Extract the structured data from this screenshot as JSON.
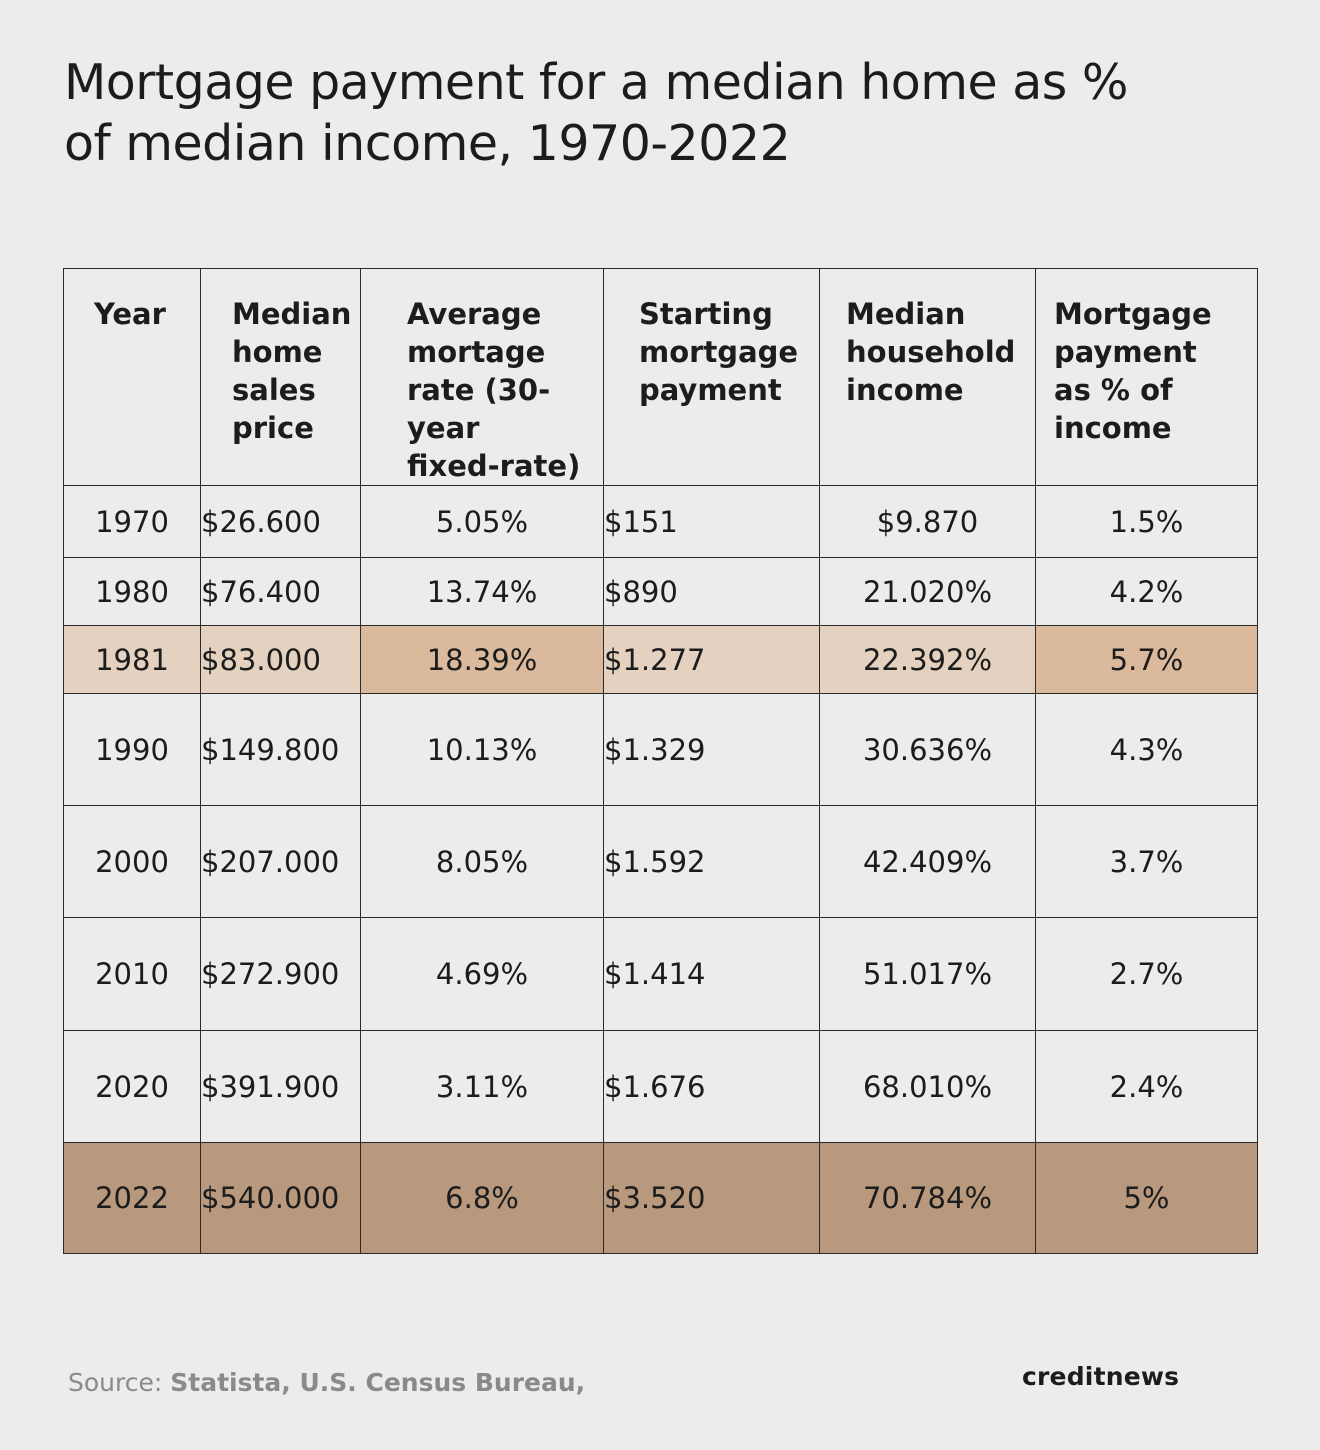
{
  "title": {
    "line1": "Mortgage payment for a median home as %",
    "line2": "of median income, 1970-2022"
  },
  "chart_data": {
    "type": "table",
    "title": "Mortgage payment for a median home as % of median income, 1970-2022",
    "columns": [
      "Year",
      "Median home sales price",
      "Average mortage rate (30-year fixed-rate)",
      "Starting mortgage payment",
      "Median household income",
      "Mortgage payment as % of income"
    ],
    "rows": [
      [
        "1970",
        "$26.600",
        "5.05%",
        "$151",
        "$9.870",
        "1.5%"
      ],
      [
        "1980",
        "$76.400",
        "13.74%",
        "$890",
        "21.020%",
        "4.2%"
      ],
      [
        "1981",
        "$83.000",
        "18.39%",
        "$1.277",
        "22.392%",
        "5.7%"
      ],
      [
        "1990",
        "$149.800",
        "10.13%",
        "$1.329",
        "30.636%",
        "4.3%"
      ],
      [
        "2000",
        "$207.000",
        "8.05%",
        "$1.592",
        "42.409%",
        "3.7%"
      ],
      [
        "2010",
        "$272.900",
        "4.69%",
        "$1.414",
        "51.017%",
        "2.7%"
      ],
      [
        "2020",
        "$391.900",
        "3.11%",
        "$1.676",
        "68.010%",
        "2.4%"
      ],
      [
        "2022",
        "$540.000",
        "6.8%",
        "$3.520",
        "70.784%",
        "5%"
      ]
    ]
  },
  "highlights": {
    "row_1981_light": "#e5d1bf",
    "row_1981_dark": "#dbb99c",
    "row_2022": "#b8997d"
  },
  "footer": {
    "source_label": "Source:",
    "source_names": "Statista, U.S. Census Bureau,",
    "brand": "creditnews"
  }
}
